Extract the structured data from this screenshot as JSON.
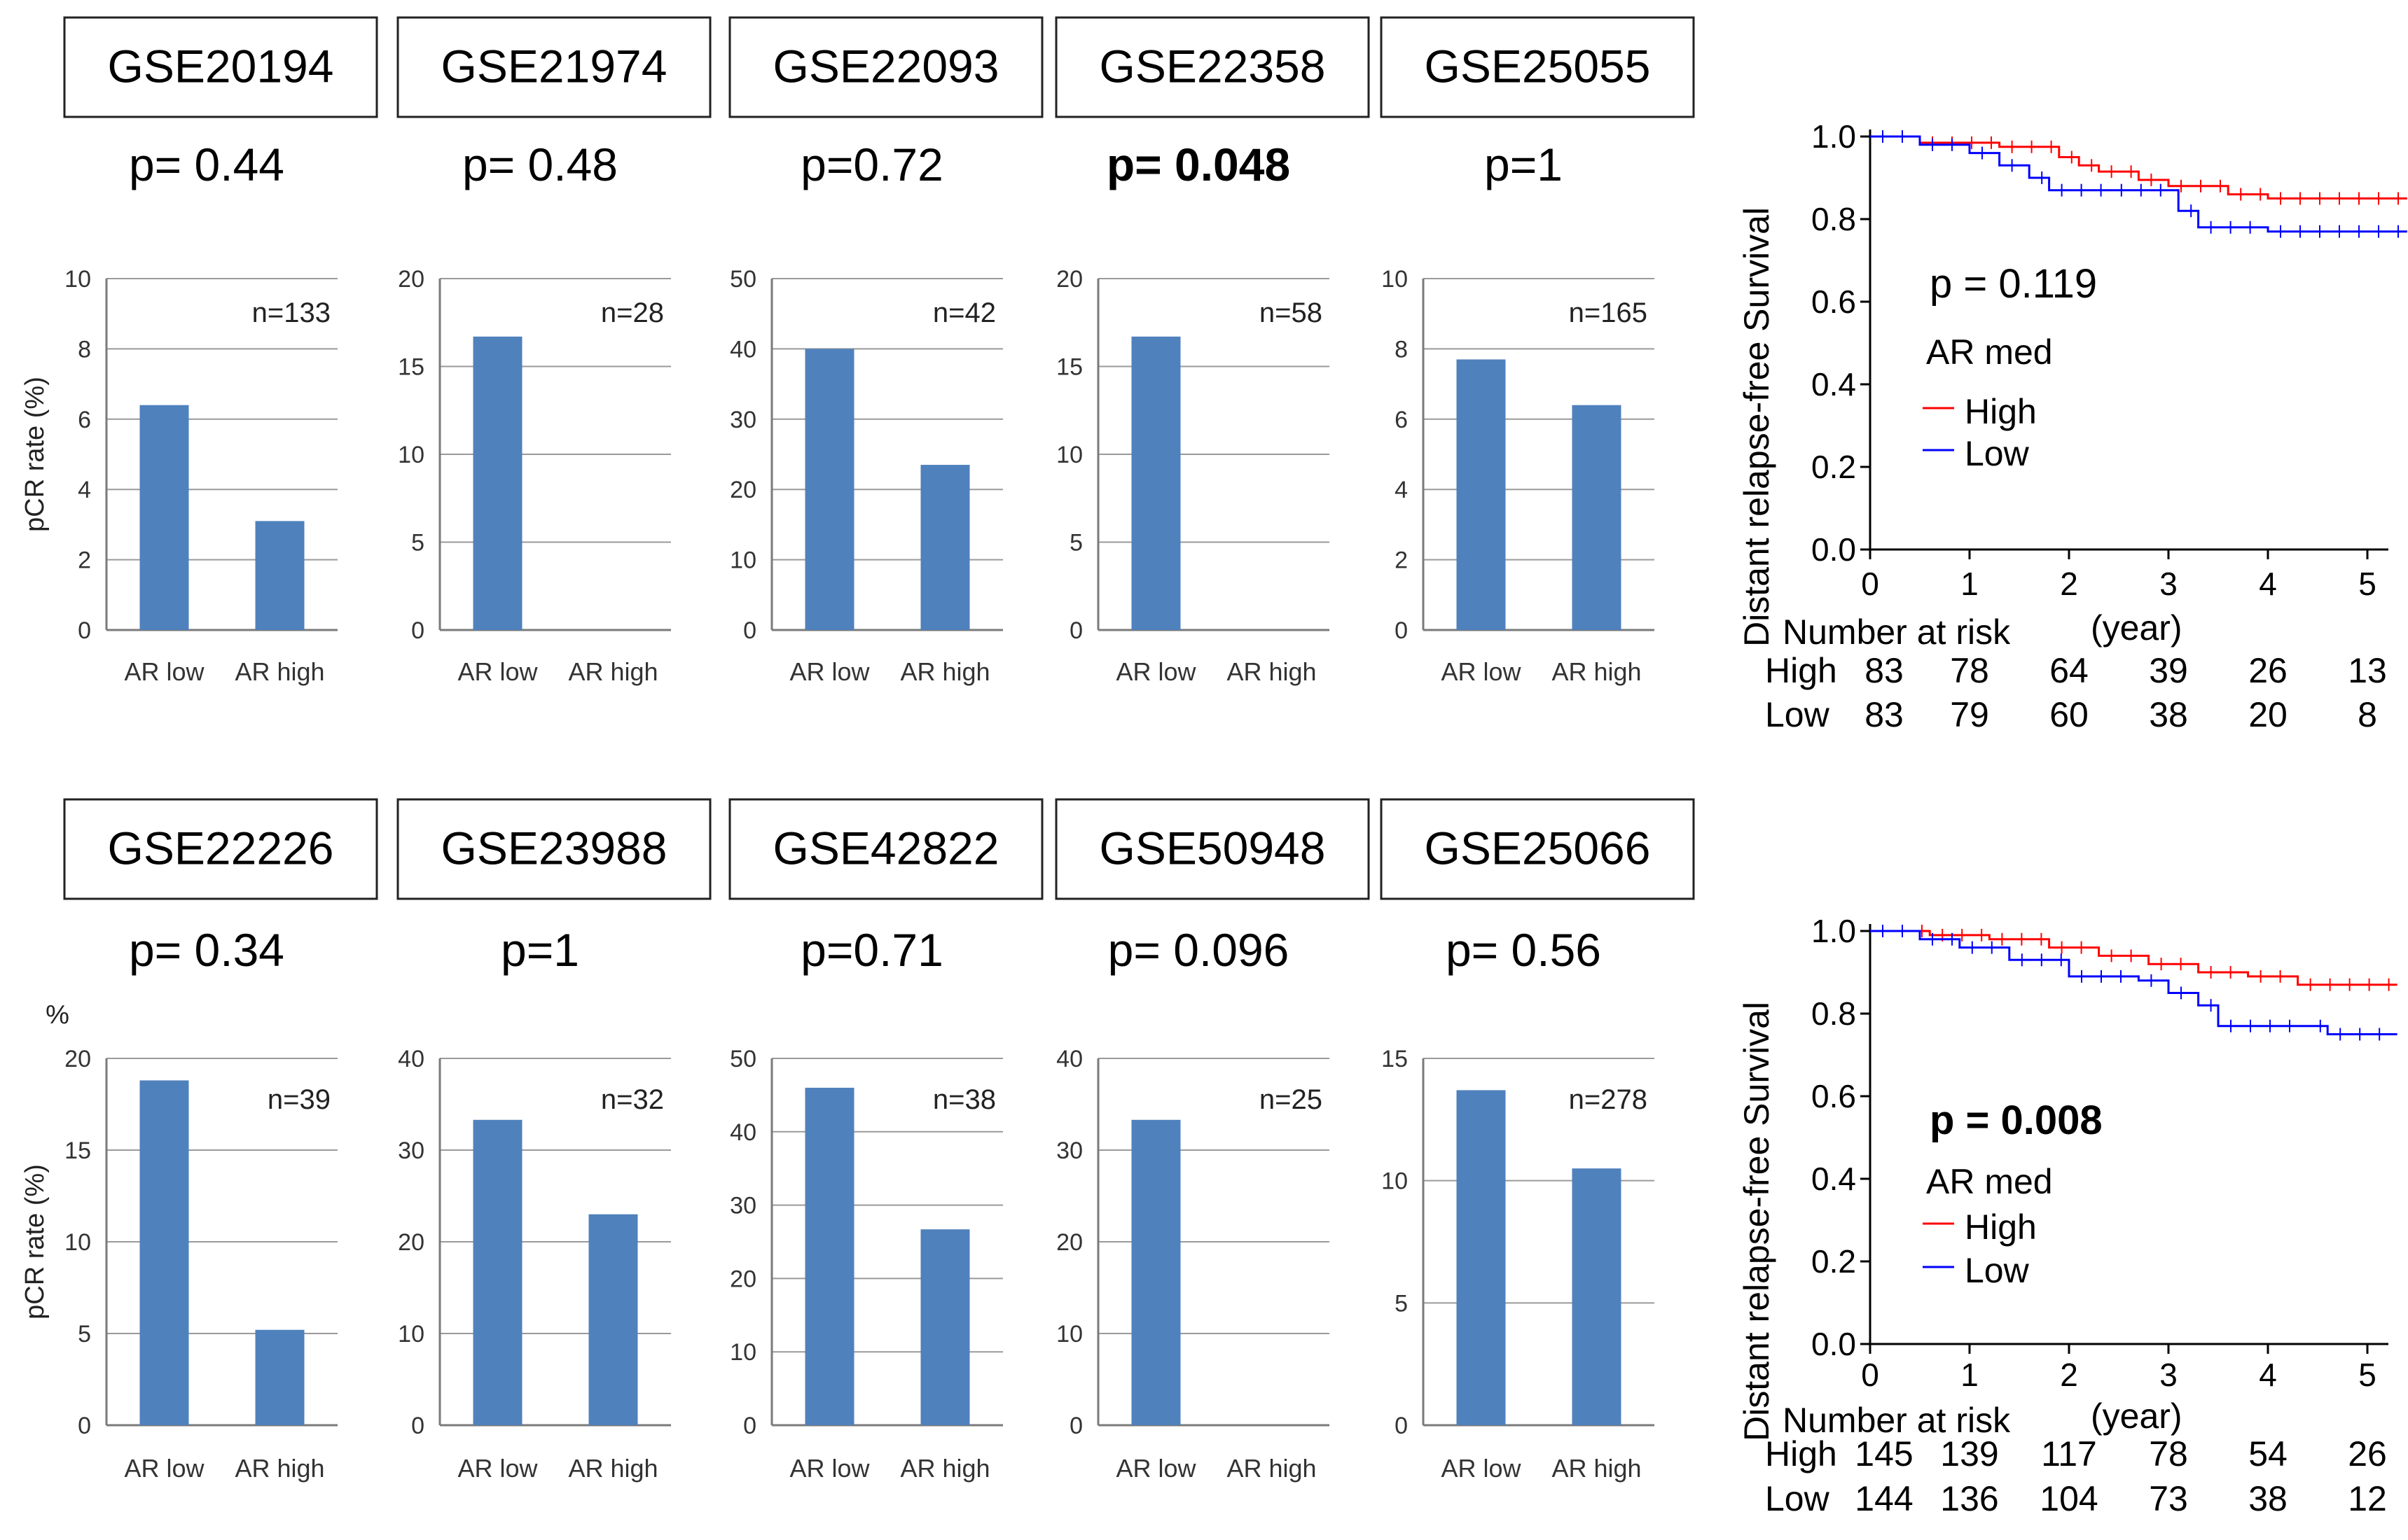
{
  "chart_data": [
    {
      "type": "bar",
      "dataset": "GSE20194",
      "p_value": "p= 0.44",
      "p_bold": false,
      "n_label": "n=133",
      "ylabel": "pCR rate (%)",
      "ylim": [
        0,
        10
      ],
      "yticks": [
        "0",
        "2",
        "4",
        "6",
        "8",
        "10"
      ],
      "categories": [
        "AR low",
        "AR high"
      ],
      "values": [
        6.4,
        3.1
      ]
    },
    {
      "type": "bar",
      "dataset": "GSE21974",
      "p_value": "p= 0.48",
      "p_bold": false,
      "n_label": "n=28",
      "ylabel": "",
      "ylim": [
        0,
        20
      ],
      "yticks": [
        "0",
        "5",
        "10",
        "15",
        "20"
      ],
      "categories": [
        "AR low",
        "AR high"
      ],
      "values": [
        16.7,
        0
      ]
    },
    {
      "type": "bar",
      "dataset": "GSE22093",
      "p_value": "p=0.72",
      "p_bold": false,
      "n_label": "n=42",
      "ylabel": "",
      "ylim": [
        0,
        50
      ],
      "yticks": [
        "0",
        "10",
        "20",
        "30",
        "40",
        "50"
      ],
      "categories": [
        "AR low",
        "AR high"
      ],
      "values": [
        40,
        23.5
      ]
    },
    {
      "type": "bar",
      "dataset": "GSE22358",
      "p_value": "p= 0.048",
      "p_bold": true,
      "n_label": "n=58",
      "ylabel": "",
      "ylim": [
        0,
        20
      ],
      "yticks": [
        "0",
        "5",
        "10",
        "15",
        "20"
      ],
      "categories": [
        "AR low",
        "AR high"
      ],
      "values": [
        16.7,
        0
      ]
    },
    {
      "type": "bar",
      "dataset": "GSE25055",
      "p_value": "p=1",
      "p_bold": false,
      "n_label": "n=165",
      "ylabel": "",
      "ylim": [
        0,
        10
      ],
      "yticks": [
        "0",
        "2",
        "4",
        "6",
        "8",
        "10"
      ],
      "categories": [
        "AR low",
        "AR high"
      ],
      "values": [
        7.7,
        6.4
      ]
    },
    {
      "type": "bar",
      "dataset": "GSE22226",
      "p_value": "p= 0.34",
      "p_bold": false,
      "n_label": "n=39",
      "ylabel": "pCR rate (%)",
      "unit_label": "%",
      "ylim": [
        0,
        20
      ],
      "yticks": [
        "0",
        "5",
        "10",
        "15",
        "20"
      ],
      "categories": [
        "AR low",
        "AR high"
      ],
      "values": [
        18.8,
        5.2
      ]
    },
    {
      "type": "bar",
      "dataset": "GSE23988",
      "p_value": "p=1",
      "p_bold": false,
      "n_label": "n=32",
      "ylabel": "",
      "ylim": [
        0,
        40
      ],
      "yticks": [
        "0",
        "10",
        "20",
        "30",
        "40"
      ],
      "categories": [
        "AR low",
        "AR high"
      ],
      "values": [
        33.3,
        23
      ]
    },
    {
      "type": "bar",
      "dataset": "GSE42822",
      "p_value": "p=0.71",
      "p_bold": false,
      "n_label": "n=38",
      "ylabel": "",
      "ylim": [
        0,
        50
      ],
      "yticks": [
        "0",
        "10",
        "20",
        "30",
        "40",
        "50"
      ],
      "categories": [
        "AR low",
        "AR high"
      ],
      "values": [
        46,
        26.7
      ]
    },
    {
      "type": "bar",
      "dataset": "GSE50948",
      "p_value": "p= 0.096",
      "p_bold": false,
      "n_label": "n=25",
      "ylabel": "",
      "ylim": [
        0,
        40
      ],
      "yticks": [
        "0",
        "10",
        "20",
        "30",
        "40"
      ],
      "categories": [
        "AR low",
        "AR high"
      ],
      "values": [
        33.3,
        0
      ]
    },
    {
      "type": "bar",
      "dataset": "GSE25066",
      "p_value": "p= 0.56",
      "p_bold": false,
      "n_label": "n=278",
      "ylabel": "",
      "ylim": [
        0,
        15
      ],
      "yticks": [
        "0",
        "5",
        "10",
        "15"
      ],
      "categories": [
        "AR low",
        "AR high"
      ],
      "values": [
        13.7,
        10.5
      ]
    },
    {
      "type": "line",
      "subtype": "kaplan-meier",
      "ylabel": "Distant relapse-free Survival",
      "xlabel": "(year)",
      "xlim": [
        0,
        5
      ],
      "ylim": [
        0,
        1
      ],
      "xticks": [
        "0",
        "1",
        "2",
        "3",
        "4",
        "5"
      ],
      "yticks": [
        "0.0",
        "0.2",
        "0.4",
        "0.6",
        "0.8",
        "1.0"
      ],
      "p_value": "p = 0.119",
      "p_bold": false,
      "legend_title": "AR med",
      "risk_title": "Number at risk",
      "series": [
        {
          "name": "High",
          "color": "#ff0000",
          "x": [
            0,
            0.5,
            1.3,
            1.9,
            2.1,
            2.3,
            2.7,
            3.0,
            3.6,
            4.0,
            5.4
          ],
          "y": [
            1.0,
            0.985,
            0.975,
            0.95,
            0.93,
            0.915,
            0.895,
            0.88,
            0.86,
            0.85,
            0.85
          ],
          "risk": [
            "83",
            "78",
            "64",
            "39",
            "26",
            "13"
          ]
        },
        {
          "name": "Low",
          "color": "#0000ff",
          "x": [
            0,
            0.5,
            1.0,
            1.3,
            1.6,
            1.8,
            2.4,
            3.1,
            3.3,
            4.0,
            5.4
          ],
          "y": [
            1.0,
            0.98,
            0.96,
            0.93,
            0.9,
            0.87,
            0.87,
            0.82,
            0.78,
            0.77,
            0.77
          ],
          "risk": [
            "83",
            "79",
            "60",
            "38",
            "20",
            "8"
          ]
        }
      ]
    },
    {
      "type": "line",
      "subtype": "kaplan-meier",
      "ylabel": "Distant relapse-free Survival",
      "xlabel": "(year)",
      "xlim": [
        0,
        5
      ],
      "ylim": [
        0,
        1
      ],
      "xticks": [
        "0",
        "1",
        "2",
        "3",
        "4",
        "5"
      ],
      "yticks": [
        "0.0",
        "0.2",
        "0.4",
        "0.6",
        "0.8",
        "1.0"
      ],
      "p_value": "p = 0.008",
      "p_bold": true,
      "legend_title": "AR med",
      "risk_title": "Number at risk",
      "series": [
        {
          "name": "High",
          "color": "#ff0000",
          "x": [
            0,
            0.6,
            1.2,
            1.8,
            2.3,
            2.8,
            3.3,
            3.8,
            4.3,
            5.3
          ],
          "y": [
            1.0,
            0.99,
            0.98,
            0.96,
            0.94,
            0.92,
            0.9,
            0.89,
            0.87,
            0.87
          ],
          "risk": [
            "145",
            "139",
            "117",
            "78",
            "54",
            "26"
          ]
        },
        {
          "name": "Low",
          "color": "#0000ff",
          "x": [
            0,
            0.5,
            0.9,
            1.4,
            2.0,
            2.7,
            3.0,
            3.3,
            3.5,
            4.4,
            4.6,
            5.3
          ],
          "y": [
            1.0,
            0.98,
            0.96,
            0.93,
            0.89,
            0.88,
            0.85,
            0.82,
            0.77,
            0.77,
            0.75,
            0.75
          ],
          "risk": [
            "144",
            "136",
            "104",
            "73",
            "38",
            "12"
          ]
        }
      ]
    }
  ]
}
